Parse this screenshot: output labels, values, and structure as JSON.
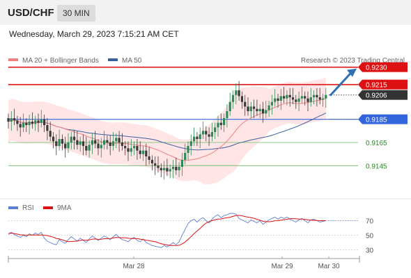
{
  "header": {
    "symbol": "USD/CHF",
    "timeframe": "30 MIN",
    "datetime": "Wednesday, March 29, 2023 7:15:21 AM CET"
  },
  "colors": {
    "bb_fill": "#ffe0e0",
    "ma20": "#f08080",
    "ma50": "#3a5f9f",
    "resistance": "#dd1111",
    "pivot": "#3366dd",
    "support": "#66bb66",
    "current": "#333333",
    "candle_up": "#2e8b57",
    "candle_down": "#3a3a3a",
    "arrow": "#2f6fb3",
    "rsi": "#5b7fd6",
    "rsi_ma": "#dd1111"
  },
  "chart_data": [
    {
      "type": "candlestick",
      "legend": [
        {
          "name": "MA 20 + Bollinger Bands",
          "color": "#f08080"
        },
        {
          "name": "MA 50",
          "color": "#3a5f9f"
        }
      ],
      "watermark": "Research © 2023 Trading Central",
      "y_range": [
        0.9117,
        0.9252
      ],
      "levels": [
        {
          "label": "0.9230",
          "value": 0.923,
          "kind": "resistance"
        },
        {
          "label": "0.9215",
          "value": 0.9215,
          "kind": "resistance"
        },
        {
          "label": "0.9206",
          "value": 0.9206,
          "kind": "current"
        },
        {
          "label": "0.9185",
          "value": 0.9185,
          "kind": "pivot"
        },
        {
          "label": "0.9165",
          "value": 0.9165,
          "kind": "support"
        },
        {
          "label": "0.9145",
          "value": 0.9145,
          "kind": "support"
        }
      ],
      "closes": [
        0.9183,
        0.9186,
        0.9184,
        0.9181,
        0.9178,
        0.9182,
        0.918,
        0.9183,
        0.9181,
        0.9184,
        0.9182,
        0.9185,
        0.918,
        0.9175,
        0.917,
        0.9166,
        0.9162,
        0.9168,
        0.9164,
        0.916,
        0.9165,
        0.917,
        0.9167,
        0.9163,
        0.9166,
        0.9162,
        0.9158,
        0.9163,
        0.9167,
        0.9164,
        0.916,
        0.9163,
        0.9167,
        0.9165,
        0.9162,
        0.9166,
        0.9169,
        0.9165,
        0.9162,
        0.916,
        0.9157,
        0.916,
        0.9162,
        0.9158,
        0.9155,
        0.9158,
        0.9153,
        0.915,
        0.9147,
        0.9145,
        0.9143,
        0.9141,
        0.9143,
        0.914,
        0.9142,
        0.9144,
        0.9141,
        0.9144,
        0.915,
        0.9156,
        0.9162,
        0.9166,
        0.917,
        0.9168,
        0.9172,
        0.9175,
        0.9172,
        0.917,
        0.9174,
        0.9178,
        0.9182,
        0.918,
        0.9186,
        0.9192,
        0.92,
        0.9206,
        0.921,
        0.9205,
        0.92,
        0.9196,
        0.9192,
        0.9196,
        0.9194,
        0.9192,
        0.9194,
        0.919,
        0.9193,
        0.9197,
        0.92,
        0.9203,
        0.9201,
        0.9205,
        0.9203,
        0.9206,
        0.9204,
        0.9202,
        0.92,
        0.9203,
        0.9205,
        0.9203,
        0.92,
        0.9204,
        0.9206,
        0.9204,
        0.9202,
        0.9203,
        0.9206
      ]
    },
    {
      "type": "line",
      "legend": [
        {
          "name": "RSI",
          "color": "#5b7fd6"
        },
        {
          "name": "9MA",
          "color": "#dd1111"
        }
      ],
      "y_range": [
        20,
        80
      ],
      "y_ticks": [
        "70",
        "50",
        "30"
      ],
      "x_ticks": [
        "Mar 28",
        "Mar 29",
        "Mar 30"
      ],
      "rsi": [
        52,
        54,
        51,
        49,
        47,
        50,
        48,
        52,
        50,
        53,
        51,
        54,
        46,
        42,
        40,
        38,
        37,
        44,
        41,
        39,
        44,
        48,
        45,
        42,
        46,
        43,
        40,
        45,
        49,
        46,
        43,
        46,
        49,
        47,
        44,
        48,
        51,
        47,
        44,
        43,
        41,
        45,
        47,
        43,
        41,
        45,
        40,
        38,
        36,
        35,
        34,
        33,
        36,
        34,
        37,
        40,
        37,
        41,
        50,
        58,
        66,
        70,
        72,
        68,
        72,
        74,
        70,
        67,
        72,
        76,
        78,
        74,
        77,
        78,
        80,
        80,
        79,
        73,
        71,
        69,
        67,
        71,
        69,
        67,
        70,
        65,
        68,
        71,
        73,
        75,
        72,
        75,
        73,
        75,
        72,
        70,
        68,
        71,
        73,
        70,
        67,
        71,
        72,
        70,
        68,
        69,
        70
      ]
    }
  ]
}
